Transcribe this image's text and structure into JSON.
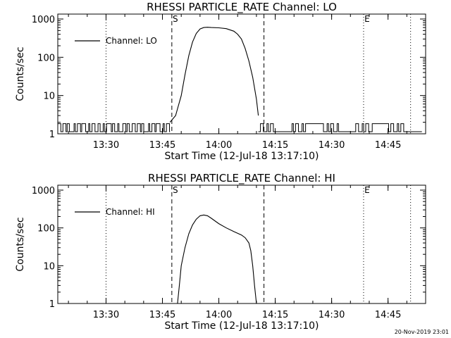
{
  "chart_data": [
    {
      "type": "line",
      "title": "RHESSI PARTICLE_RATE Channel: LO",
      "xlabel": "Start Time (12-Jul-18 13:17:10)",
      "ylabel": "Counts/sec",
      "y_scale": "log",
      "ylim": [
        1,
        1000
      ],
      "xlim": [
        "13:17:10",
        "14:55:00"
      ],
      "x_ticks": [
        "13:30",
        "13:45",
        "14:00",
        "14:15",
        "14:30",
        "14:45"
      ],
      "y_ticks": [
        "1",
        "10",
        "100",
        "1000"
      ],
      "legend": {
        "position": "top-left",
        "entries": [
          "Channel: LO"
        ]
      },
      "markers": [
        {
          "label": "S",
          "time": "13:47:30",
          "style": "dashed"
        },
        {
          "label": "",
          "time": "14:12:00",
          "style": "dashed"
        },
        {
          "label": "",
          "time": "13:30:00",
          "style": "dotted"
        },
        {
          "label": "E",
          "time": "14:38:30",
          "style": "dotted"
        },
        {
          "label": "",
          "time": "14:51:00",
          "style": "dotted"
        }
      ],
      "series": [
        {
          "name": "Channel: LO",
          "background_level": [
            1,
            2
          ],
          "x": [
            "13:47:00",
            "13:48:30",
            "13:50:00",
            "13:51:00",
            "13:52:00",
            "13:53:00",
            "13:54:00",
            "13:55:00",
            "13:56:00",
            "13:57:00",
            "13:58:00",
            "14:00:00",
            "14:02:00",
            "14:04:00",
            "14:05:00",
            "14:06:00",
            "14:07:00",
            "14:08:00",
            "14:09:00",
            "14:10:00",
            "14:10:30"
          ],
          "y": [
            2,
            3,
            10,
            35,
            110,
            250,
            420,
            550,
            600,
            610,
            600,
            590,
            560,
            480,
            400,
            300,
            170,
            80,
            30,
            8,
            3
          ]
        }
      ]
    },
    {
      "type": "line",
      "title": "RHESSI PARTICLE_RATE Channel: HI",
      "xlabel": "Start Time (12-Jul-18 13:17:10)",
      "ylabel": "Counts/sec",
      "y_scale": "log",
      "ylim": [
        1,
        1000
      ],
      "xlim": [
        "13:17:10",
        "14:55:00"
      ],
      "x_ticks": [
        "13:30",
        "13:45",
        "14:00",
        "14:15",
        "14:30",
        "14:45"
      ],
      "y_ticks": [
        "1",
        "10",
        "100",
        "1000"
      ],
      "legend": {
        "position": "top-left",
        "entries": [
          "Channel: HI"
        ]
      },
      "markers": [
        {
          "label": "S",
          "time": "13:47:30",
          "style": "dashed"
        },
        {
          "label": "",
          "time": "14:12:00",
          "style": "dashed"
        },
        {
          "label": "",
          "time": "13:30:00",
          "style": "dotted"
        },
        {
          "label": "E",
          "time": "14:38:30",
          "style": "dotted"
        },
        {
          "label": "",
          "time": "14:51:00",
          "style": "dotted"
        }
      ],
      "series": [
        {
          "name": "Channel: HI",
          "x": [
            "13:49:00",
            "13:49:30",
            "13:50:00",
            "13:51:00",
            "13:52:00",
            "13:53:00",
            "13:54:00",
            "13:55:00",
            "13:56:00",
            "13:57:00",
            "13:58:00",
            "14:00:00",
            "14:02:00",
            "14:04:00",
            "14:06:00",
            "14:07:00",
            "14:08:00",
            "14:08:30",
            "14:09:00",
            "14:09:30",
            "14:10:00"
          ],
          "y": [
            1,
            3,
            10,
            30,
            70,
            120,
            170,
            210,
            220,
            210,
            180,
            130,
            100,
            80,
            65,
            55,
            40,
            25,
            10,
            3,
            1
          ]
        }
      ]
    }
  ],
  "footer": {
    "timestamp": "20-Nov-2019 23:01"
  }
}
